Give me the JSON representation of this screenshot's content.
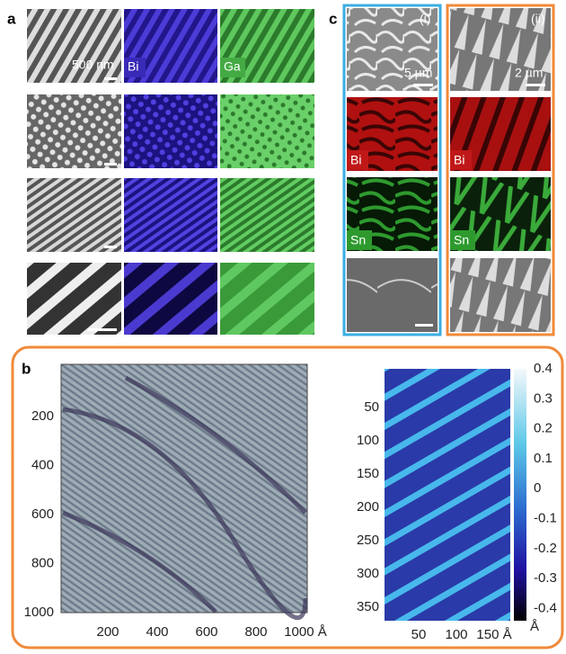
{
  "panel_a": {
    "label": "a",
    "scale_bar": "500 nm",
    "bi": "Bi",
    "ga": "Ga"
  },
  "panel_c": {
    "label": "c",
    "i": {
      "label": "(i)",
      "scale_bar": "5 µm",
      "bi": "Bi",
      "sn": "Sn"
    },
    "ii": {
      "label": "(ii)",
      "scale_bar": "2 µm",
      "bi": "Bi",
      "sn": "Sn"
    }
  },
  "panel_b": {
    "label": "b",
    "left": {
      "yticks": [
        "200",
        "400",
        "600",
        "800",
        "1000"
      ],
      "xticks": [
        "200",
        "400",
        "600",
        "800",
        "1000 Å"
      ]
    },
    "right": {
      "yticks": [
        "50",
        "100",
        "150",
        "200",
        "250",
        "300",
        "350"
      ],
      "xticks": [
        "50",
        "100",
        "150 Å"
      ],
      "colorbar": {
        "ticks": [
          "0.4",
          "0.3",
          "0.2",
          "0.1",
          "0",
          "-0.1",
          "-0.2",
          "-0.3",
          "-0.4"
        ],
        "unit": "Å"
      }
    }
  }
}
